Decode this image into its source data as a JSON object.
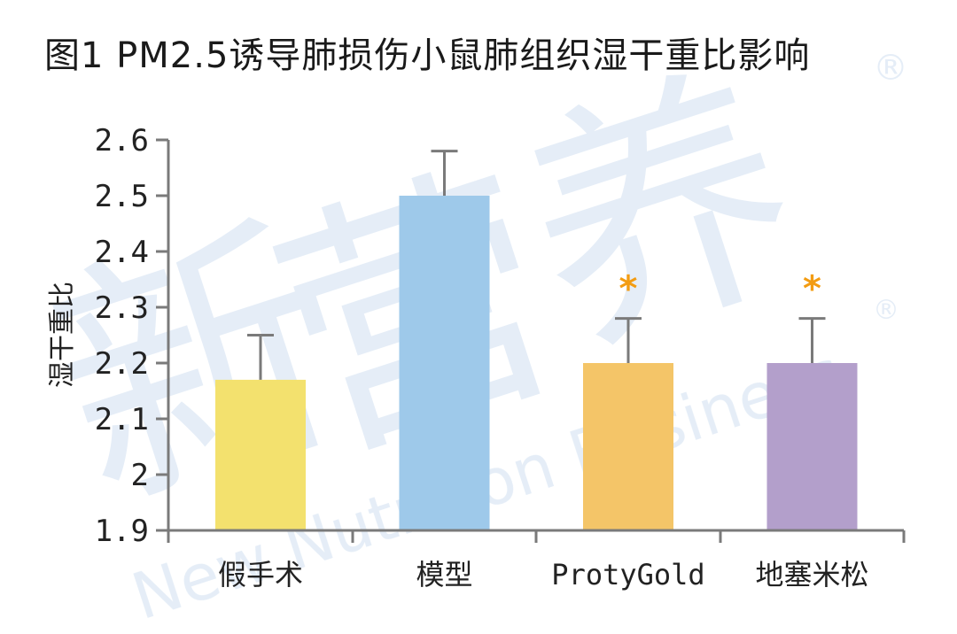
{
  "watermark": {
    "chinese": "新营养",
    "english": "New Nutrition Business",
    "registered_mark": "®",
    "color": "#cfdff0"
  },
  "chart_data": {
    "type": "bar",
    "title": "图1 PM2.5诱导肺损伤小鼠肺组织湿干重比影响",
    "xlabel": "",
    "ylabel": "湿干重比",
    "ylim": [
      1.9,
      2.6
    ],
    "yticks": [
      {
        "value": 1.9,
        "label": "1.9"
      },
      {
        "value": 2.0,
        "label": "2"
      },
      {
        "value": 2.1,
        "label": "2.1"
      },
      {
        "value": 2.2,
        "label": "2.2"
      },
      {
        "value": 2.3,
        "label": "2.3"
      },
      {
        "value": 2.4,
        "label": "2.4"
      },
      {
        "value": 2.5,
        "label": "2.5"
      },
      {
        "value": 2.6,
        "label": "2.6"
      }
    ],
    "grid": false,
    "categories": [
      "假手术",
      "模型",
      "ProtyGold",
      "地塞米松"
    ],
    "values": [
      2.17,
      2.5,
      2.2,
      2.2
    ],
    "error_upper": [
      0.08,
      0.08,
      0.08,
      0.08
    ],
    "colors": [
      "#f3e16e",
      "#9ec9ea",
      "#f4c568",
      "#b39fcb"
    ],
    "significance": [
      "",
      "",
      "*",
      "*"
    ],
    "significance_color": "#f39c12",
    "axis_color": "#7a7a7a",
    "error_bar_color": "#7a7a7a"
  }
}
